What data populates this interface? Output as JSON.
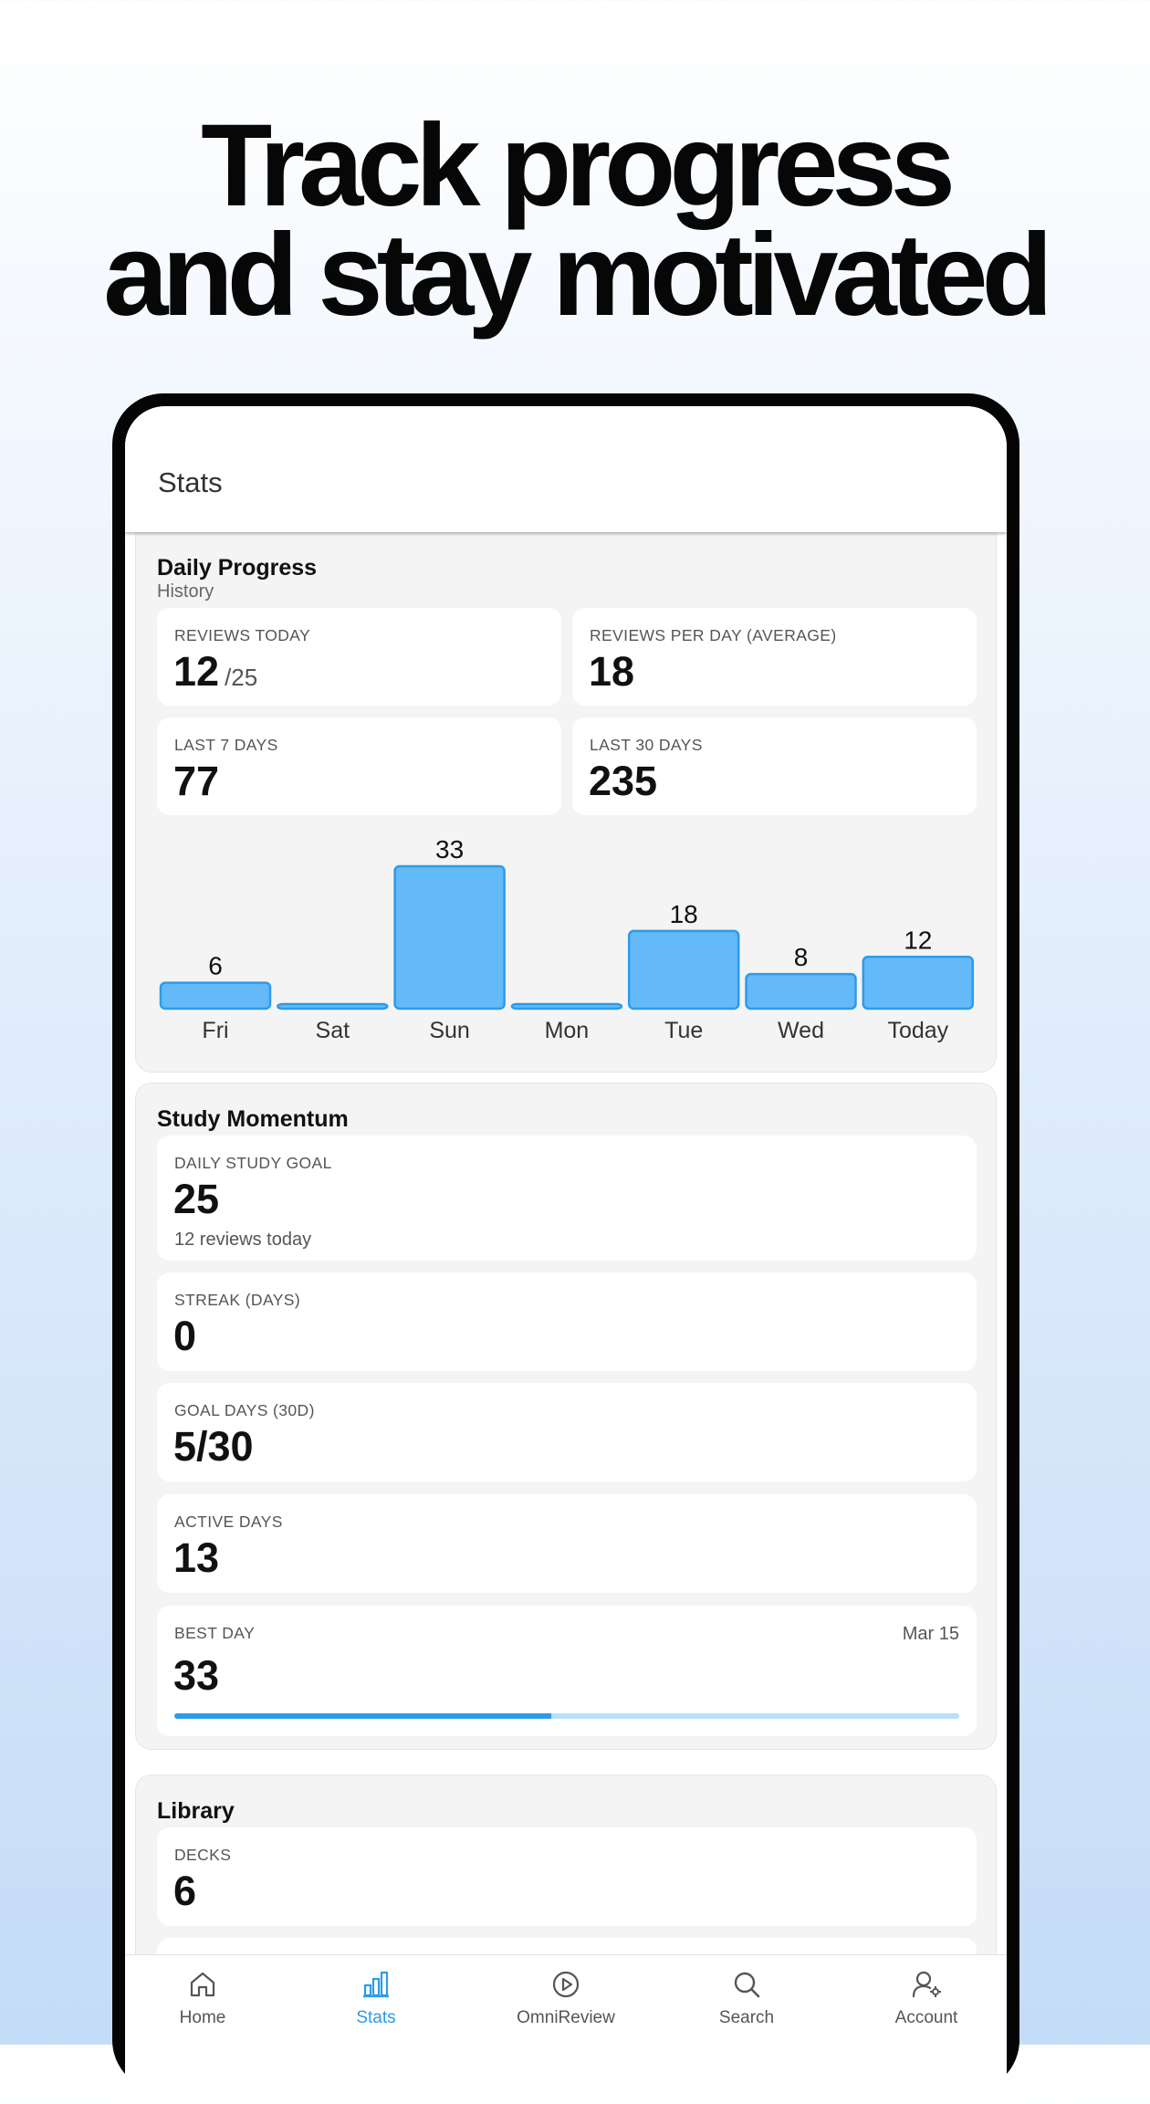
{
  "headline": {
    "line1": "Track progress",
    "line2": "and stay motivated"
  },
  "appbar": {
    "title": "Stats"
  },
  "daily_progress": {
    "title": "Daily Progress",
    "subtitle": "History",
    "cards": {
      "reviews_today": {
        "label": "REVIEWS TODAY",
        "value": "12",
        "suffix": "/25"
      },
      "reviews_per_day": {
        "label": "REVIEWS PER DAY (AVERAGE)",
        "value": "18"
      },
      "last_7_days": {
        "label": "LAST 7 DAYS",
        "value": "77"
      },
      "last_30_days": {
        "label": "LAST 30 DAYS",
        "value": "235"
      }
    }
  },
  "chart_data": {
    "type": "bar",
    "categories": [
      "Fri",
      "Sat",
      "Sun",
      "Mon",
      "Tue",
      "Wed",
      "Today"
    ],
    "values": [
      6,
      0,
      33,
      0,
      18,
      8,
      12
    ],
    "data_labels": [
      "6",
      "",
      "33",
      "",
      "18",
      "8",
      "12"
    ],
    "ylim": [
      0,
      33
    ],
    "bar_color": "#64b9f9",
    "bar_border_color": "#2e9be8",
    "grid": false,
    "legend": "none"
  },
  "study_momentum": {
    "title": "Study Momentum",
    "daily_goal": {
      "label": "DAILY STUDY GOAL",
      "value": "25",
      "sub": "12 reviews today"
    },
    "streak": {
      "label": "STREAK (DAYS)",
      "value": "0"
    },
    "goal_days": {
      "label": "GOAL DAYS (30D)",
      "value": "5/30"
    },
    "active_days": {
      "label": "ACTIVE DAYS",
      "value": "13"
    },
    "best_day": {
      "label": "BEST DAY",
      "value": "33",
      "date": "Mar 15",
      "progress_fraction": 0.48
    }
  },
  "library": {
    "title": "Library",
    "decks": {
      "label": "DECKS",
      "value": "6"
    }
  },
  "tabbar": {
    "active": "Stats",
    "items": [
      {
        "label": "Home",
        "icon": "home-icon"
      },
      {
        "label": "Stats",
        "icon": "bar-chart-icon"
      },
      {
        "label": "OmniReview",
        "icon": "play-circle-icon"
      },
      {
        "label": "Search",
        "icon": "search-icon"
      },
      {
        "label": "Account",
        "icon": "account-settings-icon"
      }
    ]
  },
  "colors": {
    "accent": "#2e9be8",
    "bar_fill": "#64b9f9",
    "progress_track": "#b8e0f7",
    "section_bg": "#f4f4f4"
  }
}
